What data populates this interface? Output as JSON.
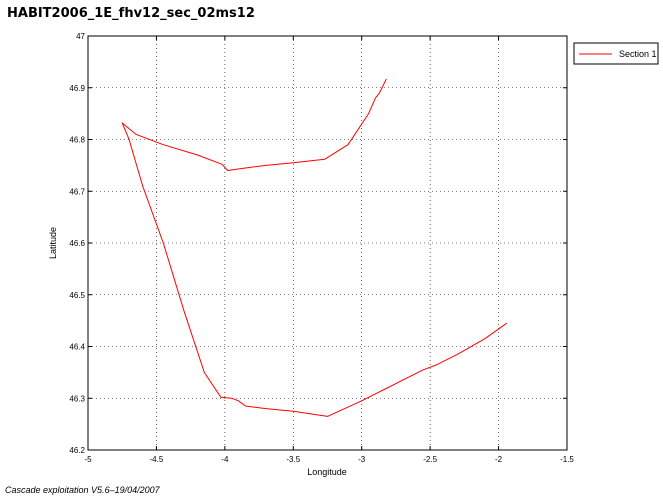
{
  "chart_data": {
    "type": "line",
    "title": "HABIT2006_1E_fhv12_sec_02ms12",
    "xlabel": "Longitude",
    "ylabel": "Latitude",
    "xlim": [
      -5,
      -1.5
    ],
    "ylim": [
      46.2,
      47
    ],
    "xticks": [
      "-5",
      "-4.5",
      "-4",
      "-3.5",
      "-3",
      "-2.5",
      "-2",
      "-1.5"
    ],
    "yticks": [
      "46.2",
      "46.3",
      "46.4",
      "46.5",
      "46.6",
      "46.7",
      "46.8",
      "46.9",
      "47"
    ],
    "grid": true,
    "legend_position": "top-right, outside plot",
    "series": [
      {
        "name": "Section 1",
        "color": "#ff0000",
        "points": [
          [
            -2.82,
            46.917
          ],
          [
            -2.87,
            46.89
          ],
          [
            -2.9,
            46.88
          ],
          [
            -2.95,
            46.85
          ],
          [
            -3.1,
            46.79
          ],
          [
            -3.27,
            46.762
          ],
          [
            -3.5,
            46.755
          ],
          [
            -3.7,
            46.75
          ],
          [
            -3.85,
            46.745
          ],
          [
            -3.98,
            46.74
          ],
          [
            -4.02,
            46.752
          ],
          [
            -4.2,
            46.77
          ],
          [
            -4.45,
            46.79
          ],
          [
            -4.65,
            46.81
          ],
          [
            -4.75,
            46.832
          ],
          [
            -4.7,
            46.8
          ],
          [
            -4.6,
            46.71
          ],
          [
            -4.45,
            46.6
          ],
          [
            -4.3,
            46.47
          ],
          [
            -4.15,
            46.35
          ],
          [
            -4.03,
            46.302
          ],
          [
            -3.95,
            46.3
          ],
          [
            -3.9,
            46.295
          ],
          [
            -3.85,
            46.285
          ],
          [
            -3.7,
            46.28
          ],
          [
            -3.5,
            46.275
          ],
          [
            -3.25,
            46.265
          ],
          [
            -3.0,
            46.295
          ],
          [
            -2.85,
            46.315
          ],
          [
            -2.7,
            46.335
          ],
          [
            -2.55,
            46.355
          ],
          [
            -2.45,
            46.365
          ],
          [
            -2.3,
            46.385
          ],
          [
            -2.1,
            46.415
          ],
          [
            -1.94,
            46.445
          ]
        ]
      }
    ]
  },
  "footer": "Cascade exploitation V5.6–19/04/2007"
}
